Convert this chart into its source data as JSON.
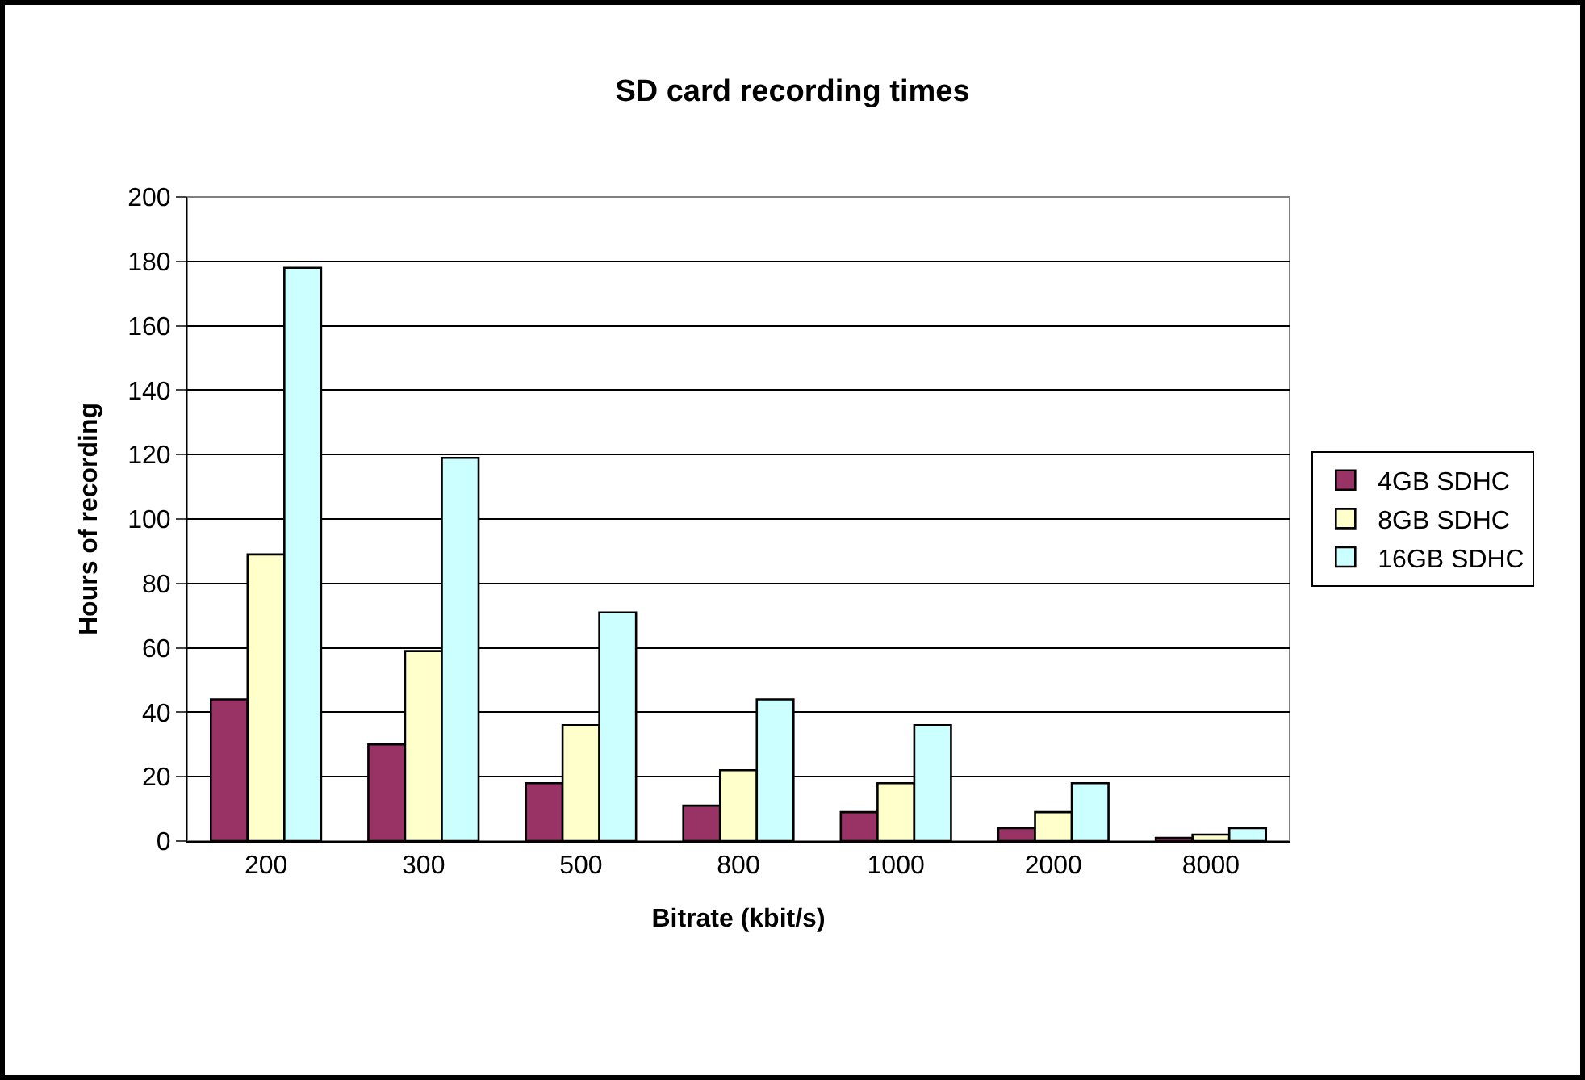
{
  "chart_data": {
    "type": "bar",
    "title": "SD card recording times",
    "xlabel": "Bitrate (kbit/s)",
    "ylabel": "Hours of recording",
    "categories": [
      "200",
      "300",
      "500",
      "800",
      "1000",
      "2000",
      "8000"
    ],
    "series": [
      {
        "name": "4GB SDHC",
        "color": "#993366",
        "values": [
          44,
          30,
          18,
          11,
          9,
          4,
          1
        ]
      },
      {
        "name": "8GB SDHC",
        "color": "#ffffcc",
        "values": [
          89,
          59,
          36,
          22,
          18,
          9,
          2
        ]
      },
      {
        "name": "16GB SDHC",
        "color": "#ccffff",
        "values": [
          178,
          119,
          71,
          44,
          36,
          18,
          4
        ]
      }
    ],
    "ylim": [
      0,
      200
    ],
    "yticks": [
      0,
      20,
      40,
      60,
      80,
      100,
      120,
      140,
      160,
      180,
      200
    ],
    "grid": "y",
    "legend": "right"
  }
}
